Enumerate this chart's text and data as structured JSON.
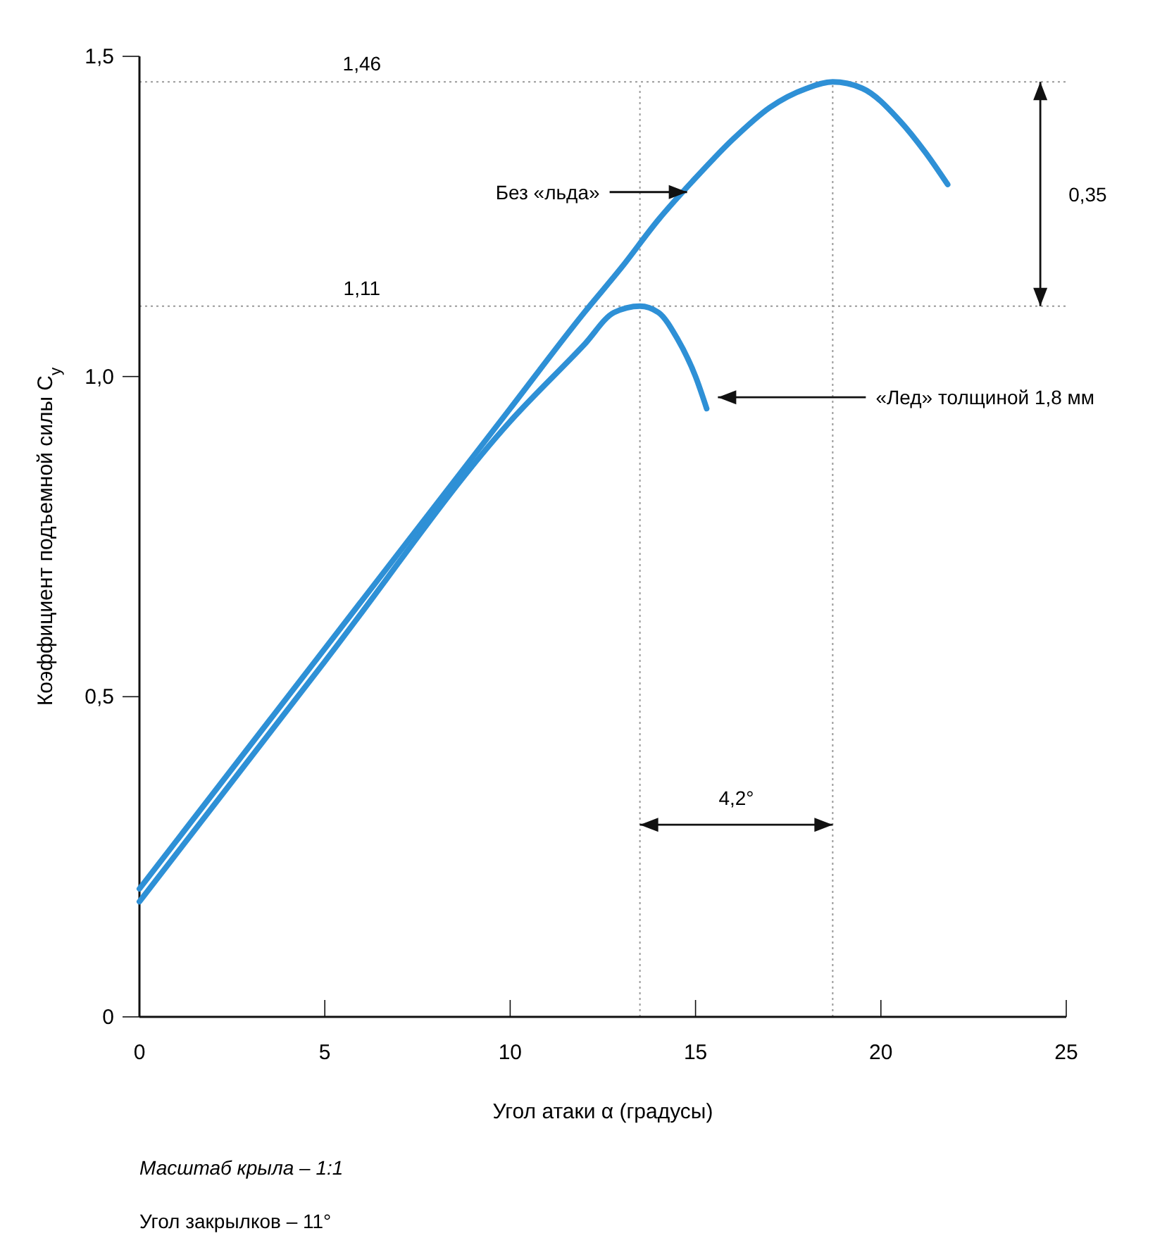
{
  "chart_data": {
    "type": "line",
    "xlabel": "Угол атаки α (градусы)",
    "ylabel": "Коэффициент подъемной силы C$_{y}$",
    "xlim": [
      0,
      25
    ],
    "xticks": [
      0,
      5,
      10,
      15,
      20,
      25
    ],
    "ylim": [
      0,
      1.5
    ],
    "yticks": [
      {
        "value": 0,
        "label": "0"
      },
      {
        "value": 0.5,
        "label": "0,5"
      },
      {
        "value": 1,
        "label": "1,0"
      },
      {
        "value": 1.5,
        "label": "1,5"
      }
    ],
    "grid": false,
    "marker": "none",
    "line_style": "solid",
    "series": [
      {
        "name": "Без «льда»",
        "color": "#2e90d6",
        "x": [
          0,
          5,
          10,
          12,
          13,
          14,
          15,
          16,
          17,
          18,
          18.7,
          19.5,
          20.5,
          21.2,
          21.8
        ],
        "values": [
          0.2,
          0.575,
          0.95,
          1.1,
          1.17,
          1.245,
          1.31,
          1.37,
          1.42,
          1.45,
          1.46,
          1.45,
          1.4,
          1.35,
          1.3
        ]
      },
      {
        "name": "«Лед» толщиной 1,8 мм",
        "color": "#2e90d6",
        "x": [
          0,
          5,
          10,
          12,
          12.8,
          13.5,
          14,
          14.5,
          15,
          15.3
        ],
        "values": [
          0.18,
          0.555,
          0.93,
          1.05,
          1.1,
          1.11,
          1.1,
          1.06,
          1,
          0.95
        ]
      }
    ],
    "ref_lines": [
      {
        "axis": "y",
        "value": 1.46,
        "label": "1,46",
        "color": "#999999",
        "line_style": "dotted"
      },
      {
        "axis": "y",
        "value": 1.11,
        "label": "1,11",
        "color": "#999999",
        "line_style": "dotted"
      },
      {
        "axis": "x",
        "value": 13.5,
        "color": "#999999",
        "line_style": "dotted"
      },
      {
        "axis": "x",
        "value": 18.7,
        "color": "#999999",
        "line_style": "dotted"
      }
    ],
    "annotations": [
      "0,35",
      "4,2°",
      "Масштаб крыла – 1:1",
      "Угол закрылков – 11°"
    ]
  }
}
